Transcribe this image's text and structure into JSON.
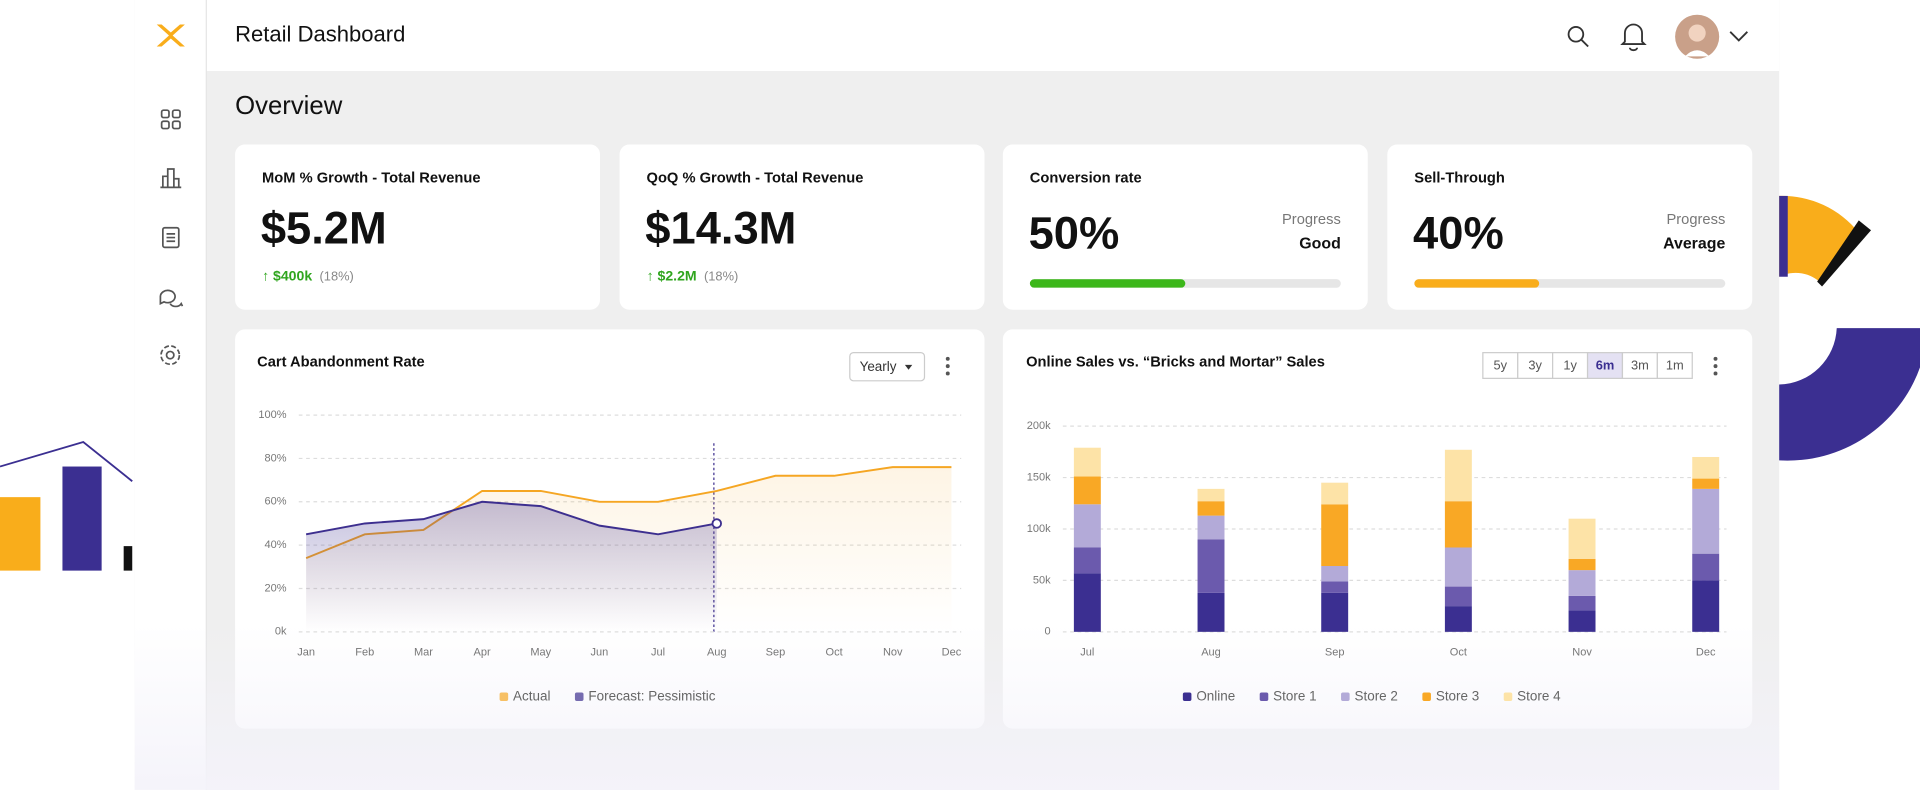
{
  "header": {
    "title": "Retail Dashboard"
  },
  "overview": {
    "title": "Overview"
  },
  "cards": [
    {
      "title": "MoM % Growth - Total Revenue",
      "value": "$5.2M",
      "change": "$400k",
      "change_pct": "(18%)"
    },
    {
      "title": "QoQ % Growth - Total Revenue",
      "value": "$14.3M",
      "change": "$2.2M",
      "change_pct": "(18%)"
    }
  ],
  "progress_cards": [
    {
      "title": "Conversion rate",
      "value": 50,
      "value_label": "50%",
      "progress_label": "Progress",
      "status": "Good",
      "color": "#3cb71a"
    },
    {
      "title": "Sell-Through",
      "value": 40,
      "value_label": "40%",
      "progress_label": "Progress",
      "status": "Average",
      "color": "#f9ad1b"
    }
  ],
  "cart_chart": {
    "type": "line",
    "title": "Cart Abandonment Rate",
    "control": "Yearly",
    "categories": [
      "Jan",
      "Feb",
      "Mar",
      "Apr",
      "May",
      "Jun",
      "Jul",
      "Aug",
      "Sep",
      "Oct",
      "Nov",
      "Dec"
    ],
    "ylim": [
      0,
      100
    ],
    "yticks": [
      {
        "value": 0,
        "label": "0k"
      },
      {
        "value": 20,
        "label": "20%"
      },
      {
        "value": 40,
        "label": "40%"
      },
      {
        "value": 60,
        "label": "60%"
      },
      {
        "value": 80,
        "label": "80%"
      },
      {
        "value": 100,
        "label": "100%"
      }
    ],
    "grid": true,
    "series": [
      {
        "name": "Actual",
        "color": "#f5a623",
        "values": [
          34,
          45,
          47,
          65,
          65,
          60,
          60,
          65,
          72,
          72,
          76,
          76
        ]
      },
      {
        "name": "Forecast: Pessimistic",
        "color": "#3d2f8f",
        "values": [
          45,
          50,
          52,
          60,
          58,
          49,
          45,
          50,
          null,
          null,
          null,
          null
        ]
      }
    ]
  },
  "sales_chart": {
    "type": "bar",
    "stacked": true,
    "title": "Online Sales vs. “Bricks and Mortar” Sales",
    "ranges": [
      "5y",
      "3y",
      "1y",
      "6m",
      "3m",
      "1m"
    ],
    "selected_range": "6m",
    "categories": [
      "Jul",
      "Aug",
      "Sep",
      "Oct",
      "Nov",
      "Dec"
    ],
    "ylim": [
      0,
      200
    ],
    "yticks": [
      0,
      {
        "value": 50,
        "label": "50k"
      },
      {
        "value": 100,
        "label": "100k"
      },
      {
        "value": 150,
        "label": "150k"
      },
      {
        "value": 200,
        "label": "200k"
      }
    ],
    "grid": true,
    "series": [
      {
        "name": "Online",
        "color": "#3b2f91",
        "values": [
          57,
          38,
          38,
          25,
          21,
          50
        ]
      },
      {
        "name": "Store 1",
        "color": "#6b5aad",
        "values": [
          25,
          52,
          11,
          19,
          14,
          26
        ]
      },
      {
        "name": "Store 2",
        "color": "#b3aad8",
        "values": [
          42,
          23,
          15,
          38,
          25,
          63
        ]
      },
      {
        "name": "Store 3",
        "color": "#f9a825",
        "values": [
          27,
          14,
          60,
          45,
          11,
          10
        ]
      },
      {
        "name": "Store 4",
        "color": "#fde3a7",
        "values": [
          28,
          12,
          21,
          50,
          39,
          21
        ]
      }
    ]
  }
}
